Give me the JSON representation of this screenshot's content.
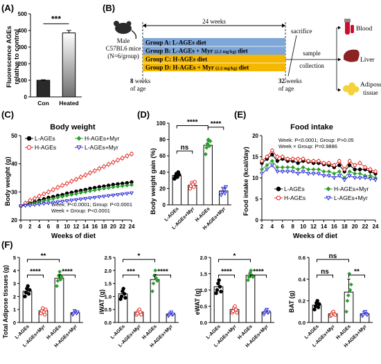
{
  "colors": {
    "black": "#000000",
    "red": "#e2231a",
    "green": "#2ca02c",
    "blue": "#2d2dd8",
    "group_blue": "#7ea6d8",
    "group_orange": "#f5b800",
    "bar_fill": "#ffffff"
  },
  "panels": {
    "A": "(A)",
    "B": "(B)",
    "C": "(C)",
    "D": "(D)",
    "E": "(E)",
    "F": "(F)"
  },
  "panelA": {
    "ylabel_line1": "Fluorescence AGEs",
    "ylabel_line2": "relative to control",
    "sig": "***"
  },
  "panelB": {
    "mouse_line1": "Male",
    "mouse_line2": "C57BL6 mice",
    "mouse_line3": "(N=6/group)",
    "duration": "24 weeks",
    "sacrifice": "sacrifice",
    "groups": [
      {
        "main": "Group A: L-AGEs diet",
        "dose": ""
      },
      {
        "main": "Group B: L-AGEs + Myr ",
        "dose": "(2.2 mg/kg)",
        "tail": " diet"
      },
      {
        "main": "Group C: H-AGEs diet",
        "dose": ""
      },
      {
        "main": "Group D: H-AGEs + Myr ",
        "dose": "(2.2 mg/kg)",
        "tail": " diet"
      }
    ],
    "start_week": "8",
    "start_text1": " weeks",
    "start_text2": "of age",
    "end_week": "32",
    "end_text1": " weeks",
    "end_text2": "of age",
    "sample_line1": "sample",
    "sample_line2": "collection",
    "tissues": [
      "Blood",
      "Liver",
      "Adipose",
      "tissue"
    ]
  },
  "panelC": {
    "title": "Body weight",
    "ylabel": "Body weight (g)",
    "xlabel": "Weeks of diet",
    "legend": [
      "L-AGEs",
      "H-AGEs",
      "H-AGEs+Myr",
      "L-AGEs+Myr"
    ],
    "stats_line1": "Week: P<0.0001; Group: P<0.0001",
    "stats_line2": "Week × Group: P<0.0001"
  },
  "panelD": {
    "ylabel": "Body weight gain (%)",
    "sig_outer": "****",
    "sig_ab": "ns",
    "sig_cd": "****"
  },
  "panelE": {
    "title": "Food intake",
    "ylabel": "Food intake (kcal/day)",
    "xlabel": "Weeks of diet",
    "stats_line1": "Week: P<0.0001; Group: P>0.05",
    "stats_line2": "Week × Group: P=0.9886",
    "legend": [
      "L-AGEs",
      "H-AGEs",
      "H-AGEs+Myr",
      "L-AGEs+Myr"
    ]
  },
  "panelF": {
    "ylabels": [
      "Total Adipose tissues (g)",
      "iWAT (g)",
      "eWAT (g)",
      "BAT (g)"
    ],
    "sigs": [
      {
        "outer": "**",
        "ab": "****",
        "cd": "****"
      },
      {
        "outer": "*",
        "ab": "***",
        "cd": "****"
      },
      {
        "outer": "*",
        "ab": "****",
        "cd": "****"
      },
      {
        "outer": "ns",
        "ab": "ns",
        "cd": "**"
      }
    ]
  },
  "chart_data": [
    {
      "panel": "A",
      "type": "bar",
      "categories": [
        "Con",
        "Heated"
      ],
      "values": [
        100,
        385
      ],
      "errors": [
        3,
        15
      ],
      "ylim": [
        0,
        500
      ],
      "yticks": [
        0,
        100,
        200,
        300,
        400,
        500
      ]
    },
    {
      "panel": "C",
      "type": "line",
      "title": "Body weight",
      "xlabel": "Weeks of diet",
      "ylabel": "Body weight (g)",
      "xlim": [
        0,
        24
      ],
      "ylim": [
        20,
        50
      ],
      "xticks": [
        0,
        2,
        4,
        6,
        8,
        10,
        12,
        14,
        16,
        18,
        20,
        22,
        24
      ],
      "yticks": [
        20,
        30,
        40,
        50
      ],
      "x": [
        0,
        1,
        2,
        3,
        4,
        5,
        6,
        7,
        8,
        9,
        10,
        11,
        12,
        13,
        14,
        15,
        16,
        17,
        18,
        19,
        20,
        21,
        22,
        23,
        24
      ],
      "series": [
        {
          "name": "L-AGEs",
          "values": [
            25,
            25.5,
            26,
            26.5,
            27,
            27.5,
            28,
            28.3,
            28.7,
            29,
            29.5,
            29.8,
            30.2,
            30.5,
            30.8,
            31.2,
            31.5,
            31.8,
            32,
            32.3,
            32.6,
            32.8,
            33,
            33.2,
            33.5
          ]
        },
        {
          "name": "H-AGEs",
          "values": [
            25,
            26,
            27,
            27.7,
            28.5,
            29.3,
            30,
            30.8,
            31.6,
            32.3,
            33,
            33.8,
            34.5,
            35.3,
            36,
            36.8,
            37.5,
            38.3,
            39,
            39.8,
            40.5,
            41.3,
            42,
            42.8,
            43.5
          ]
        },
        {
          "name": "H-AGEs+Myr",
          "values": [
            25,
            25.3,
            25.7,
            26,
            26.4,
            26.8,
            27.2,
            27.6,
            28,
            28.3,
            28.7,
            29,
            29.3,
            29.7,
            30,
            30.3,
            30.6,
            30.9,
            31.2,
            31.4,
            31.7,
            31.9,
            32.1,
            32.3,
            32.5
          ]
        },
        {
          "name": "L-AGEs+Myr",
          "values": [
            25,
            25.1,
            25.2,
            25.4,
            25.6,
            25.8,
            26,
            26.2,
            26.4,
            26.6,
            26.8,
            27,
            27.2,
            27.4,
            27.6,
            27.8,
            28,
            28.2,
            28.4,
            28.6,
            28.8,
            29,
            29.2,
            29.4,
            29.6
          ]
        }
      ]
    },
    {
      "panel": "D",
      "type": "bar",
      "categories": [
        "L-AGEs",
        "L-AGEs+Myr",
        "H-AGEs",
        "H-AGEs+Myr"
      ],
      "values": [
        36,
        24,
        73,
        17
      ],
      "errors": [
        3,
        3,
        6,
        4
      ],
      "points": [
        [
          32,
          35,
          38,
          34,
          40,
          37
        ],
        [
          20,
          23,
          27,
          25,
          22,
          28
        ],
        [
          62,
          70,
          75,
          80,
          72,
          78
        ],
        [
          12,
          15,
          20,
          18,
          14,
          22
        ]
      ],
      "ylim": [
        0,
        100
      ],
      "yticks": [
        0,
        20,
        40,
        60,
        80,
        100
      ]
    },
    {
      "panel": "E",
      "type": "line",
      "title": "Food intake",
      "xlabel": "Weeks of diet",
      "ylabel": "Food intake (kcal/day)",
      "xlim": [
        2,
        24
      ],
      "ylim": [
        0,
        20
      ],
      "xticks": [
        2,
        4,
        6,
        8,
        10,
        12,
        14,
        16,
        18,
        20,
        22,
        24
      ],
      "yticks": [
        0,
        5,
        10,
        15,
        20
      ],
      "x": [
        2,
        3,
        4,
        5,
        6,
        7,
        8,
        9,
        10,
        11,
        12,
        13,
        14,
        15,
        16,
        17,
        18,
        19,
        20,
        21,
        22,
        23,
        24
      ],
      "series": [
        {
          "name": "L-AGEs",
          "values": [
            13.5,
            14.5,
            15.5,
            14,
            14.5,
            14,
            14,
            13.5,
            14,
            13.8,
            13.5,
            13.5,
            13.2,
            13,
            12.5,
            13,
            11.5,
            13,
            12,
            12,
            12,
            11.5,
            11
          ]
        },
        {
          "name": "H-AGEs",
          "values": [
            14,
            15,
            16.5,
            15,
            15,
            14.5,
            14.5,
            14.5,
            14.5,
            14,
            14,
            14,
            13.5,
            13.5,
            13,
            14,
            12,
            14,
            13,
            13.5,
            12.5,
            12,
            11.5
          ]
        },
        {
          "name": "H-AGEs+Myr",
          "values": [
            12,
            13,
            14,
            12.5,
            12.5,
            12.5,
            12.5,
            12,
            12.5,
            12,
            12,
            12,
            11.5,
            11.5,
            11,
            11.5,
            10,
            11.5,
            11,
            11,
            10.5,
            10.5,
            10
          ]
        },
        {
          "name": "L-AGEs+Myr",
          "values": [
            11,
            12,
            13,
            11.5,
            11.5,
            11.5,
            11.5,
            11,
            11.5,
            11,
            11,
            11,
            10.5,
            10.5,
            10,
            10.5,
            9.5,
            10.5,
            10,
            10,
            10,
            9.8,
            9.5
          ]
        }
      ]
    },
    {
      "panel": "F1",
      "type": "bar",
      "ylabel": "Total Adipose tissues (g)",
      "categories": [
        "L-AGEs",
        "L-AGEs+Myr",
        "H-AGEs",
        "H-AGEs+Myr"
      ],
      "values": [
        2.4,
        0.9,
        3.4,
        0.75
      ],
      "errors": [
        0.3,
        0.15,
        0.3,
        0.1
      ],
      "points": [
        [
          2.0,
          2.3,
          2.6,
          2.8,
          2.2,
          2.5
        ],
        [
          0.7,
          0.9,
          1.1,
          0.8,
          0.6,
          1.0
        ],
        [
          2.8,
          3.2,
          3.6,
          3.9,
          3.3,
          3.5
        ],
        [
          0.6,
          0.7,
          0.9,
          0.8,
          0.7,
          0.8
        ]
      ],
      "ylim": [
        0,
        5
      ],
      "yticks": [
        0,
        1,
        2,
        3,
        4,
        5
      ]
    },
    {
      "panel": "F2",
      "type": "bar",
      "ylabel": "iWAT (g)",
      "categories": [
        "L-AGEs",
        "L-AGEs+Myr",
        "H-AGEs",
        "H-AGEs+Myr"
      ],
      "values": [
        1.1,
        0.4,
        1.65,
        0.32
      ],
      "errors": [
        0.15,
        0.08,
        0.2,
        0.05
      ],
      "points": [
        [
          0.9,
          1.0,
          1.2,
          1.3,
          1.1,
          0.95
        ],
        [
          0.3,
          0.35,
          0.45,
          0.5,
          0.4,
          0.3
        ],
        [
          1.2,
          1.5,
          1.8,
          2.0,
          1.7,
          1.6
        ],
        [
          0.25,
          0.3,
          0.35,
          0.4,
          0.3,
          0.32
        ]
      ],
      "ylim": [
        0,
        2.5
      ],
      "yticks": [
        0,
        0.5,
        1.0,
        1.5,
        2.0,
        2.5
      ]
    },
    {
      "panel": "F3",
      "type": "bar",
      "ylabel": "eWAT (g)",
      "categories": [
        "L-AGEs",
        "L-AGEs+Myr",
        "H-AGEs",
        "H-AGEs+Myr"
      ],
      "values": [
        1.1,
        0.4,
        1.45,
        0.32
      ],
      "errors": [
        0.12,
        0.06,
        0.1,
        0.04
      ],
      "points": [
        [
          0.9,
          1.0,
          1.2,
          1.3,
          1.1,
          0.95
        ],
        [
          0.3,
          0.35,
          0.45,
          0.5,
          0.4,
          0.3
        ],
        [
          1.3,
          1.4,
          1.5,
          1.6,
          1.45,
          1.4
        ],
        [
          0.25,
          0.3,
          0.35,
          0.4,
          0.3,
          0.32
        ]
      ],
      "ylim": [
        0,
        2.0
      ],
      "yticks": [
        0,
        0.5,
        1.0,
        1.5,
        2.0
      ]
    },
    {
      "panel": "F4",
      "type": "bar",
      "ylabel": "BAT (g)",
      "categories": [
        "L-AGEs",
        "L-AGEs+Myr",
        "H-AGEs",
        "H-AGEs+Myr"
      ],
      "values": [
        0.16,
        0.08,
        0.28,
        0.08
      ],
      "errors": [
        0.03,
        0.015,
        0.12,
        0.015
      ],
      "points": [
        [
          0.12,
          0.15,
          0.18,
          0.2,
          0.14,
          0.17
        ],
        [
          0.06,
          0.07,
          0.09,
          0.1,
          0.08,
          0.07
        ],
        [
          0.1,
          0.2,
          0.25,
          0.45,
          0.3,
          0.35
        ],
        [
          0.06,
          0.07,
          0.09,
          0.1,
          0.08,
          0.07
        ]
      ],
      "ylim": [
        0,
        0.6
      ],
      "yticks": [
        0,
        0.2,
        0.4,
        0.6
      ]
    }
  ]
}
